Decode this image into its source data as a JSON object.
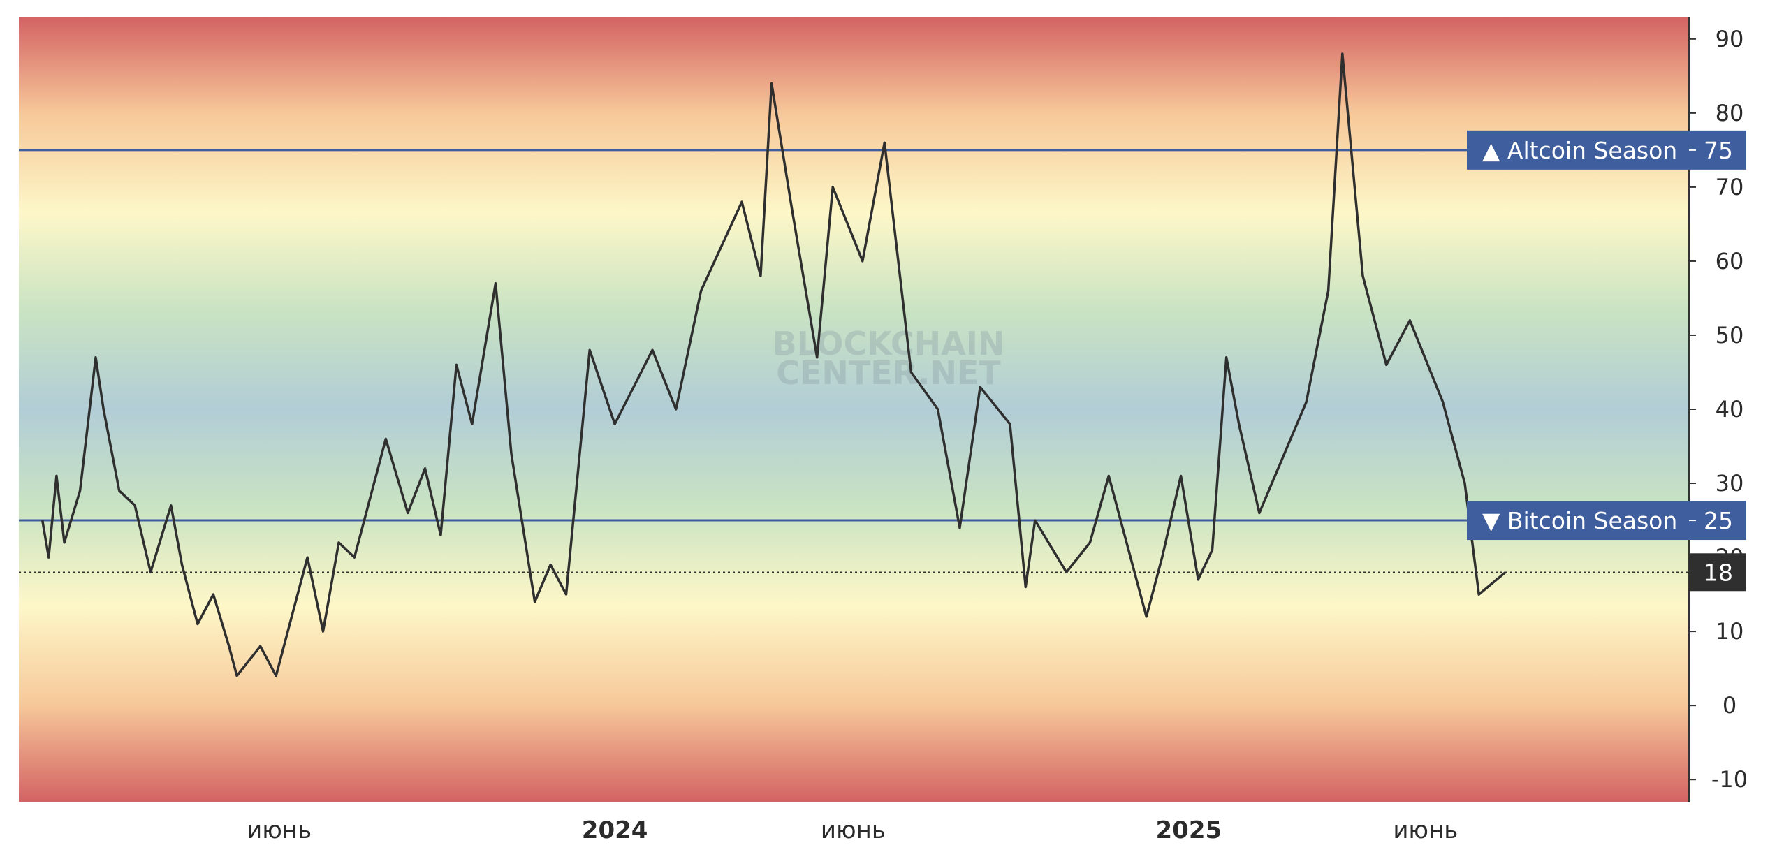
{
  "watermark": {
    "line1": "BLOCKCHAIN",
    "line2": "CENTER.NET"
  },
  "colors": {
    "background_bands": [
      "#d36363",
      "#f7c99a",
      "#fdf7c8",
      "#c9e3c3",
      "#b2cdd6",
      "#c9e3c3",
      "#fdf7c8",
      "#f7c99a",
      "#d36363"
    ],
    "line": "#2f2f2f",
    "marker_fill": "#3f5e9d",
    "marker_line": "#3f5e9d",
    "last_value_fill": "#2f2f2f",
    "axis": "#333333"
  },
  "chart_data": {
    "type": "line",
    "x_unit": "days since 2023-01-01",
    "x_range": [
      -15,
      1050
    ],
    "ylim": [
      -13,
      93
    ],
    "y_ticks": [
      -10,
      0,
      10,
      20,
      30,
      40,
      50,
      60,
      70,
      80,
      90
    ],
    "grid": false,
    "x_tick_labels": [
      {
        "x": 151,
        "label": "июнь",
        "bold": false
      },
      {
        "x": 365,
        "label": "2024",
        "bold": true
      },
      {
        "x": 517,
        "label": "июнь",
        "bold": false
      },
      {
        "x": 731,
        "label": "2025",
        "bold": true
      },
      {
        "x": 882,
        "label": "июнь",
        "bold": false
      }
    ],
    "reference_lines": [
      {
        "value": 75,
        "label": "▲ Altcoin Season",
        "value_label": "75"
      },
      {
        "value": 25,
        "label": "▼ Bitcoin Season",
        "value_label": "25"
      }
    ],
    "last_value": {
      "value": 18,
      "label": "18"
    },
    "series": [
      {
        "x": [
          0,
          4,
          9,
          14,
          24,
          34,
          39,
          49,
          59,
          69,
          82,
          89,
          99,
          109,
          119,
          124,
          139,
          149,
          159,
          169,
          179,
          189,
          199,
          219,
          233,
          244,
          254,
          264,
          274,
          289,
          299,
          314,
          324,
          334,
          349,
          365,
          389,
          404,
          420,
          446,
          458,
          465,
          478,
          494,
          504,
          523,
          537,
          554,
          571,
          585,
          598,
          617,
          627,
          633,
          653,
          668,
          680,
          704,
          714,
          726,
          737,
          746,
          755,
          763,
          776,
          788,
          806,
          820,
          829,
          842,
          857,
          872,
          893,
          907,
          916,
          933
        ],
        "y": [
          25,
          20,
          31,
          22,
          29,
          47,
          40,
          29,
          27,
          18,
          27,
          19,
          11,
          15,
          8,
          4,
          8,
          4,
          12,
          20,
          10,
          22,
          20,
          36,
          26,
          32,
          23,
          46,
          38,
          57,
          34,
          14,
          19,
          15,
          48,
          38,
          48,
          40,
          56,
          68,
          58,
          84,
          67,
          47,
          70,
          60,
          76,
          45,
          40,
          24,
          43,
          38,
          16,
          25,
          18,
          22,
          31,
          12,
          20,
          31,
          17,
          21,
          47,
          38,
          26,
          32,
          41,
          56,
          88,
          58,
          46,
          52,
          41,
          30,
          15,
          18
        ]
      }
    ]
  }
}
